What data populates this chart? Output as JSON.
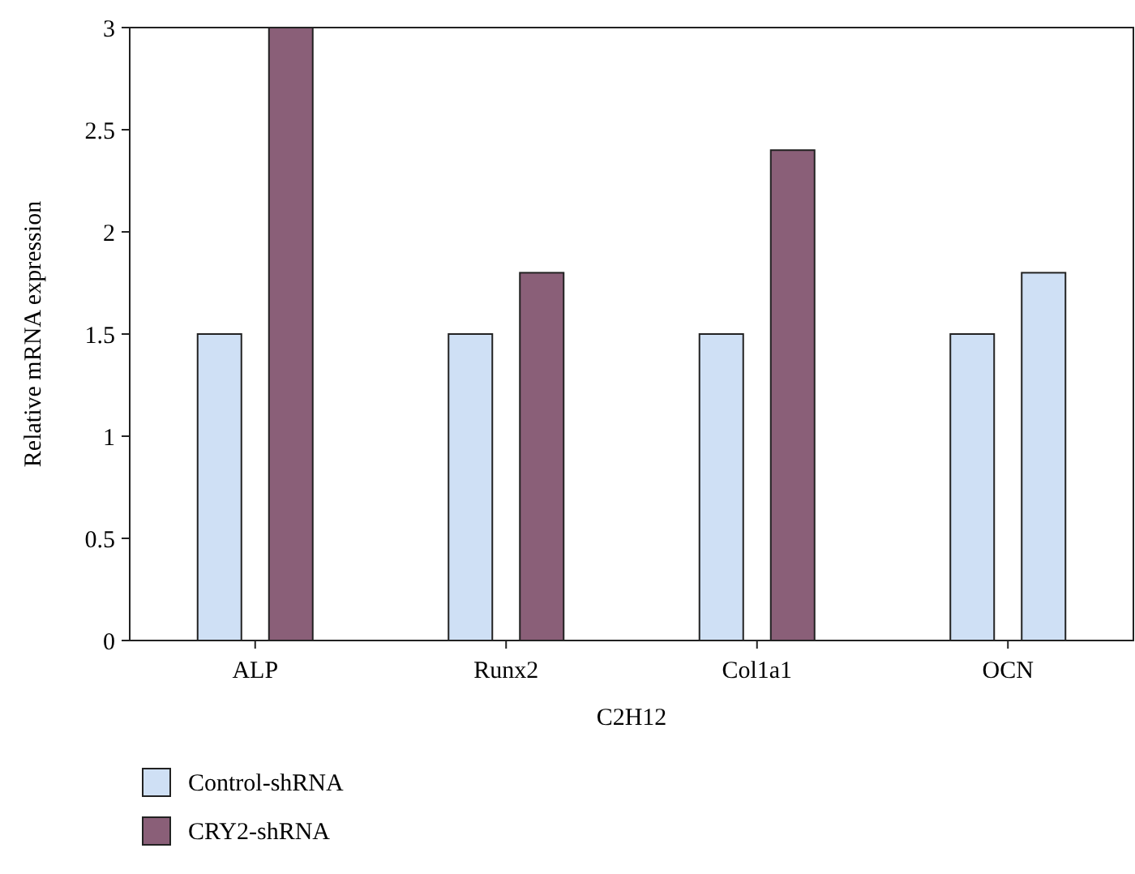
{
  "chart_data": {
    "type": "bar",
    "xlabel": "C2H12",
    "ylabel": "Relative mRNA expression",
    "categories": [
      "ALP",
      "Runx2",
      "Col1a1",
      "OCN"
    ],
    "series": [
      {
        "name": "Control-shRNA",
        "color": "#cfe0f5",
        "values": [
          1.5,
          1.5,
          1.5,
          1.5
        ]
      },
      {
        "name": "CRY2-shRNA",
        "color": "#8a5f78",
        "colors": [
          "#8a5f78",
          "#8a5f78",
          "#8a5f78",
          "#cfe0f5"
        ],
        "values": [
          3.0,
          1.8,
          2.4,
          1.8
        ]
      }
    ],
    "ylim": [
      0,
      3
    ],
    "yticks": [
      0,
      {
        "value": 0.5,
        "label": "0.5"
      },
      1,
      {
        "value": 1.5,
        "label": "1.5"
      },
      2,
      {
        "value": 2.5,
        "label": "2.5"
      },
      3
    ],
    "grid": false,
    "legend": "bottom left"
  }
}
